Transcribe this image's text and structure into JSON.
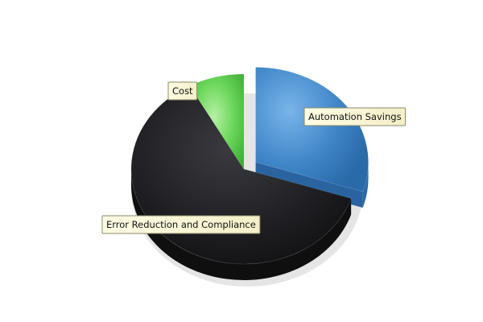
{
  "chart_data": {
    "type": "pie",
    "title": "",
    "style": "3d-exploded",
    "legend": "none",
    "slices": [
      {
        "label": "Automation Savings",
        "value": 30,
        "color": "#3d85c6",
        "exploded": true
      },
      {
        "label": "Error Reduction and Compliance",
        "value": 62,
        "color": "#1e1e1e",
        "exploded": false
      },
      {
        "label": "Cost",
        "value": 8,
        "color": "#5fcf54",
        "exploded": false
      }
    ]
  }
}
